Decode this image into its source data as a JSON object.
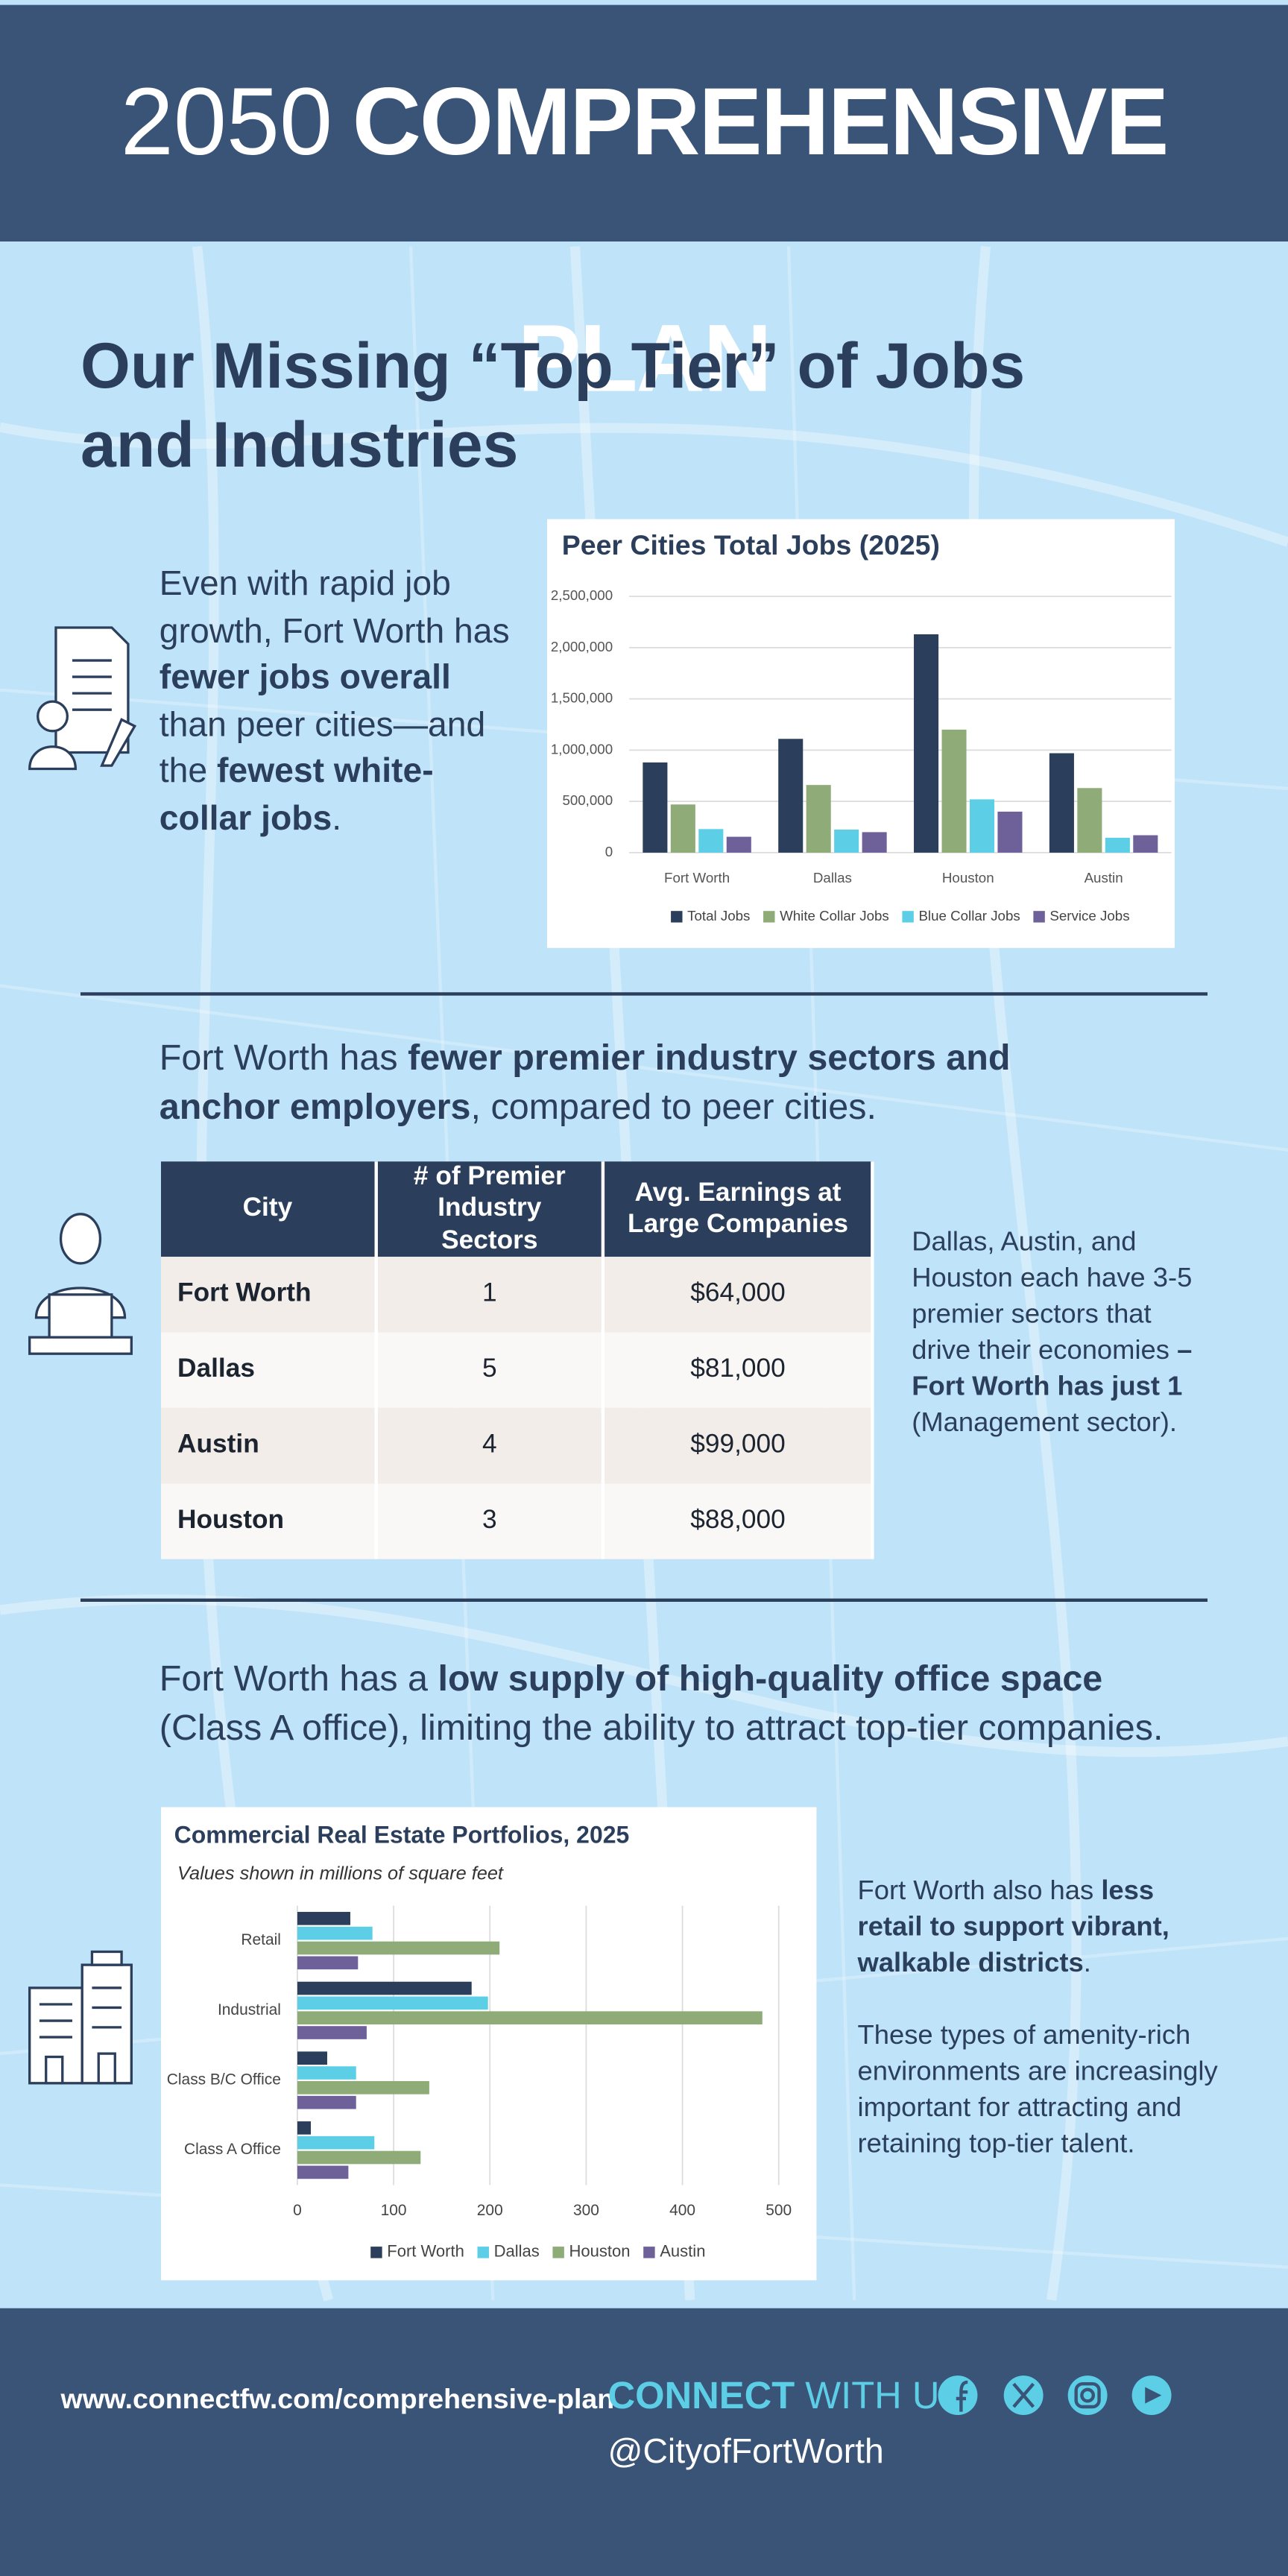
{
  "header": {
    "year": "2050",
    "title": "COMPREHENSIVE PLAN"
  },
  "headline": "Our Missing “Top Tier” of Jobs and Industries",
  "jobs_text": [
    {
      "text": "Even with rapid job growth, Fort Worth has "
    },
    {
      "text": "fewer jobs overall",
      "bold": true
    },
    {
      "text": " than peer cities—and the "
    },
    {
      "text": "fewest white-collar jobs",
      "bold": true
    },
    {
      "text": "."
    }
  ],
  "sectors_text": [
    {
      "text": "Fort Worth has "
    },
    {
      "text": "fewer premier industry sectors and anchor employers",
      "bold": true
    },
    {
      "text": ", compared to peer cities."
    }
  ],
  "table": {
    "headers": [
      "City",
      "# of Premier Industry Sectors",
      "Avg. Earnings at Large Companies"
    ],
    "rows": [
      [
        "Fort Worth",
        1,
        "$64,000"
      ],
      [
        "Dallas",
        5,
        "$81,000"
      ],
      [
        "Austin",
        4,
        "$99,000"
      ],
      [
        "Houston",
        3,
        "$88,000"
      ]
    ]
  },
  "sectors_note": [
    {
      "text": "Dallas, Austin, and Houston each have 3-5 premier sectors that drive their economies "
    },
    {
      "text": "– Fort Worth has just 1",
      "bold": true
    },
    {
      "text": " (Management sector)."
    }
  ],
  "office_text": [
    {
      "text": "Fort Worth has a "
    },
    {
      "text": "low supply of high-quality office space",
      "bold": true
    },
    {
      "text": " (Class A office), limiting the ability to attract top-tier companies."
    }
  ],
  "retail_note": [
    {
      "text": "Fort Worth also has "
    },
    {
      "text": "less retail to support vibrant, walkable districts",
      "bold": true
    },
    {
      "text": "."
    }
  ],
  "talent_note": "These types of amenity-rich environments are increasingly important for attracting and retaining top-tier talent.",
  "footer": {
    "url": "www.connectfw.com/comprehensive-plan",
    "connect": "CONNECT",
    "with_us": "WITH US.",
    "handle": "@CityofFortWorth"
  },
  "chart_data": [
    {
      "type": "bar",
      "orientation": "vertical",
      "title": "Peer Cities Total Jobs (2025)",
      "categories": [
        "Fort Worth",
        "Dallas",
        "Houston",
        "Austin"
      ],
      "series": [
        {
          "name": "Total Jobs",
          "color": "#2b3f5c",
          "values": [
            880000,
            1110000,
            2130000,
            970000
          ]
        },
        {
          "name": "White Collar Jobs",
          "color": "#8fac78",
          "values": [
            470000,
            660000,
            1200000,
            630000
          ]
        },
        {
          "name": "Blue Collar Jobs",
          "color": "#5ccfe6",
          "values": [
            230000,
            225000,
            520000,
            145000
          ]
        },
        {
          "name": "Service Jobs",
          "color": "#6e6199",
          "values": [
            155000,
            200000,
            400000,
            170000
          ]
        }
      ],
      "ylim": [
        0,
        2500000
      ],
      "yticks": [
        0,
        {
          "value": 500000,
          "label": "500,000"
        },
        {
          "value": 1000000,
          "label": "1,000,000"
        },
        {
          "value": 1500000,
          "label": "1,500,000"
        },
        {
          "value": 2000000,
          "label": "2,000,000"
        },
        {
          "value": 2500000,
          "label": "2,500,000"
        }
      ],
      "grid": true,
      "legend": "bottom"
    },
    {
      "type": "bar",
      "orientation": "horizontal",
      "title": "Commercial Real Estate Portfolios, 2025",
      "subtitle": "Values shown in millions of square feet",
      "categories": [
        "Retail",
        "Industrial",
        "Class B/C Office",
        "Class A Office"
      ],
      "series": [
        {
          "name": "Fort Worth",
          "color": "#2b3f5c",
          "values": [
            55,
            181,
            31,
            14
          ]
        },
        {
          "name": "Dallas",
          "color": "#5ccfe6",
          "values": [
            78,
            198,
            61,
            80
          ]
        },
        {
          "name": "Houston",
          "color": "#8fac78",
          "values": [
            210,
            483,
            137,
            128
          ]
        },
        {
          "name": "Austin",
          "color": "#6e6199",
          "values": [
            63,
            72,
            61,
            53
          ]
        }
      ],
      "xlim": [
        0,
        500
      ],
      "xticks": [
        0,
        100,
        200,
        300,
        400,
        500
      ],
      "grid": true,
      "legend": "bottom"
    }
  ]
}
